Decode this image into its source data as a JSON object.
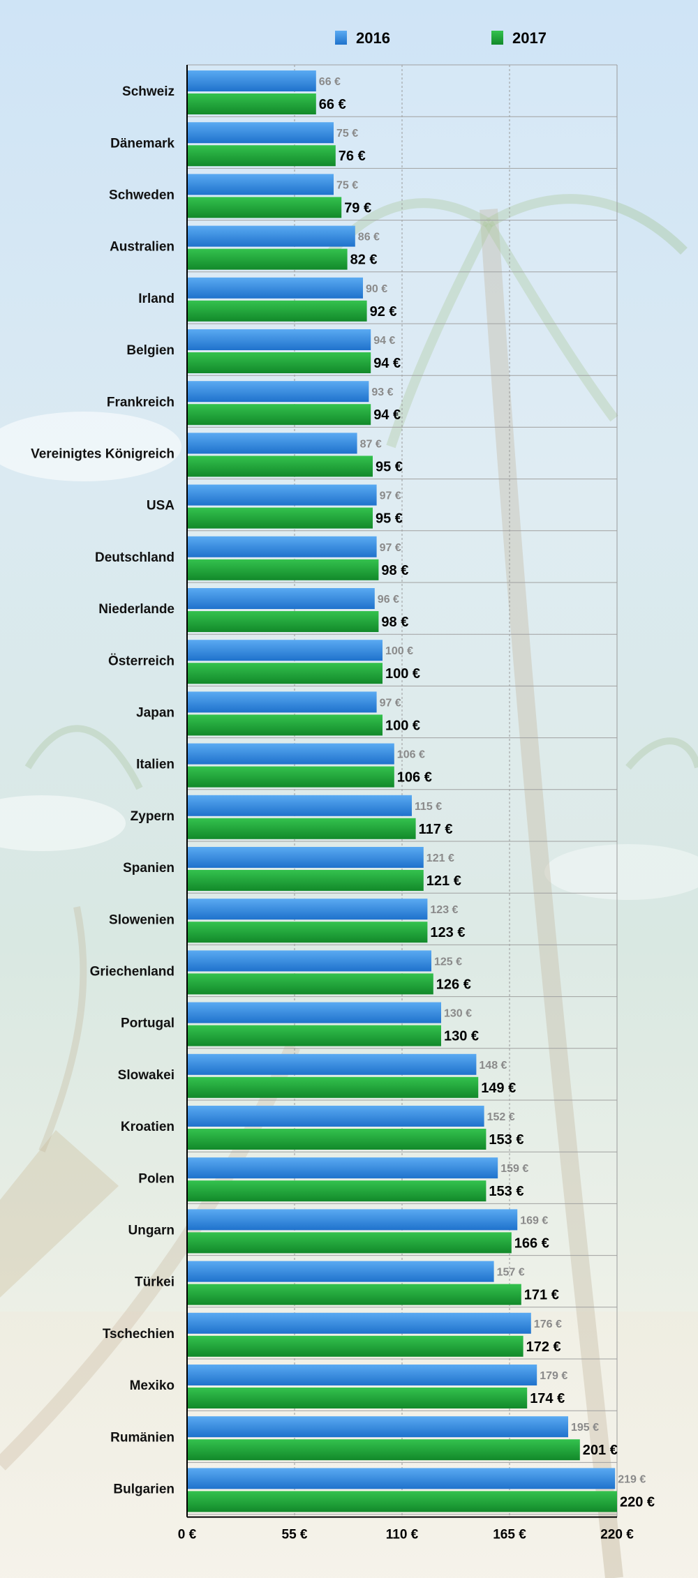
{
  "chart_data": {
    "type": "bar",
    "orientation": "horizontal",
    "title": "",
    "xlabel": "",
    "ylabel": "",
    "xlim": [
      0,
      220
    ],
    "grid": true,
    "legend_position": "top",
    "colors": {
      "2016": "#2f86e0",
      "2017": "#1aa332"
    },
    "x_ticks": [
      "0 €",
      "55 €",
      "110 €",
      "165 €",
      "220 €"
    ],
    "x_tick_values": [
      0,
      55,
      110,
      165,
      220
    ],
    "value_suffix": " €",
    "categories": [
      "Schweiz",
      "Dänemark",
      "Schweden",
      "Australien",
      "Irland",
      "Belgien",
      "Frankreich",
      "Vereinigtes Königreich",
      "USA",
      "Deutschland",
      "Niederlande",
      "Österreich",
      "Japan",
      "Italien",
      "Zypern",
      "Spanien",
      "Slowenien",
      "Griechenland",
      "Portugal",
      "Slowakei",
      "Kroatien",
      "Polen",
      "Ungarn",
      "Türkei",
      "Tschechien",
      "Mexiko",
      "Rumänien",
      "Bulgarien"
    ],
    "series": [
      {
        "name": "2016",
        "values": [
          66,
          75,
          75,
          86,
          90,
          94,
          93,
          87,
          97,
          97,
          96,
          100,
          97,
          106,
          115,
          121,
          123,
          125,
          130,
          148,
          152,
          159,
          169,
          157,
          176,
          179,
          195,
          219
        ]
      },
      {
        "name": "2017",
        "values": [
          66,
          76,
          79,
          82,
          92,
          94,
          94,
          95,
          95,
          98,
          98,
          100,
          100,
          106,
          117,
          121,
          123,
          126,
          130,
          149,
          153,
          153,
          166,
          171,
          172,
          174,
          201,
          220
        ]
      }
    ]
  }
}
